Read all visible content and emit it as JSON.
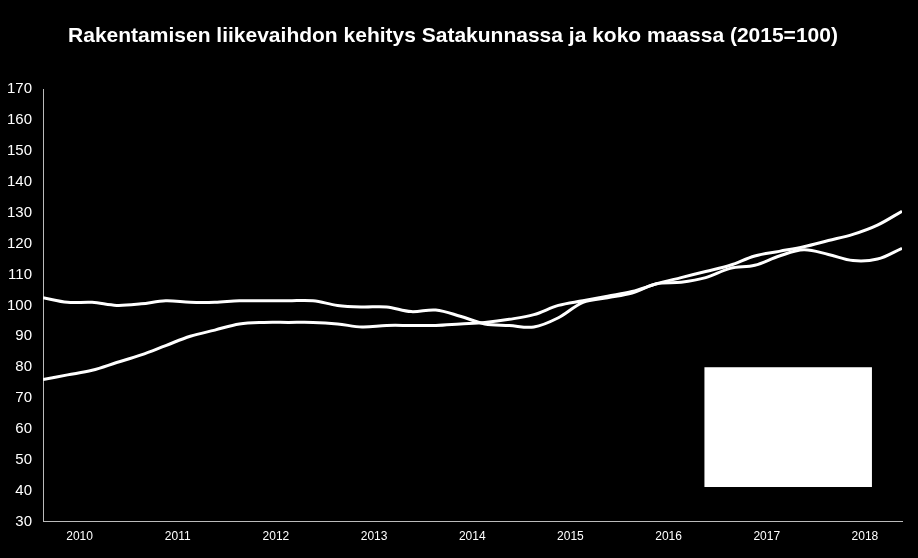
{
  "chart_data": {
    "type": "line",
    "title": "Rakentamisen liikevaihdon kehitys Satakunnassa ja koko maassa (2015=100)",
    "categories": [
      null,
      "2010",
      null,
      null,
      null,
      "2011",
      null,
      null,
      null,
      "2012",
      null,
      null,
      null,
      "2013",
      null,
      null,
      null,
      "2014",
      null,
      null,
      null,
      "2015",
      null,
      null,
      null,
      "2016",
      null,
      null,
      null,
      "2017",
      null,
      null,
      null,
      "2018",
      null,
      null
    ],
    "series": [
      {
        "color": "#ffffff",
        "values": [
          102.5,
          101,
          101,
          100,
          100.5,
          101.5,
          101,
          101,
          101.5,
          101.5,
          101.5,
          101.5,
          100,
          99.5,
          99.5,
          98,
          98.5,
          96.5,
          94,
          93.5,
          93,
          96,
          101,
          102.5,
          104,
          107,
          107.5,
          109,
          112,
          113,
          116,
          118,
          116.5,
          114.5,
          115,
          118.5
        ]
      },
      {
        "color": "#ffffff",
        "values": [
          76,
          77.5,
          79,
          81.5,
          84,
          87,
          90,
          92,
          94,
          94.5,
          94.5,
          94.5,
          94,
          93,
          93.5,
          93.5,
          93.5,
          94,
          94.5,
          95.5,
          97,
          100,
          101.5,
          103,
          104.5,
          107,
          109,
          111,
          113,
          116,
          117.5,
          119,
          121,
          123,
          126,
          130.5
        ]
      }
    ],
    "ylim": [
      30,
      170
    ],
    "yticks": [
      30,
      40,
      50,
      60,
      70,
      80,
      90,
      100,
      110,
      120,
      130,
      140,
      150,
      160,
      170
    ],
    "grid": false
  }
}
